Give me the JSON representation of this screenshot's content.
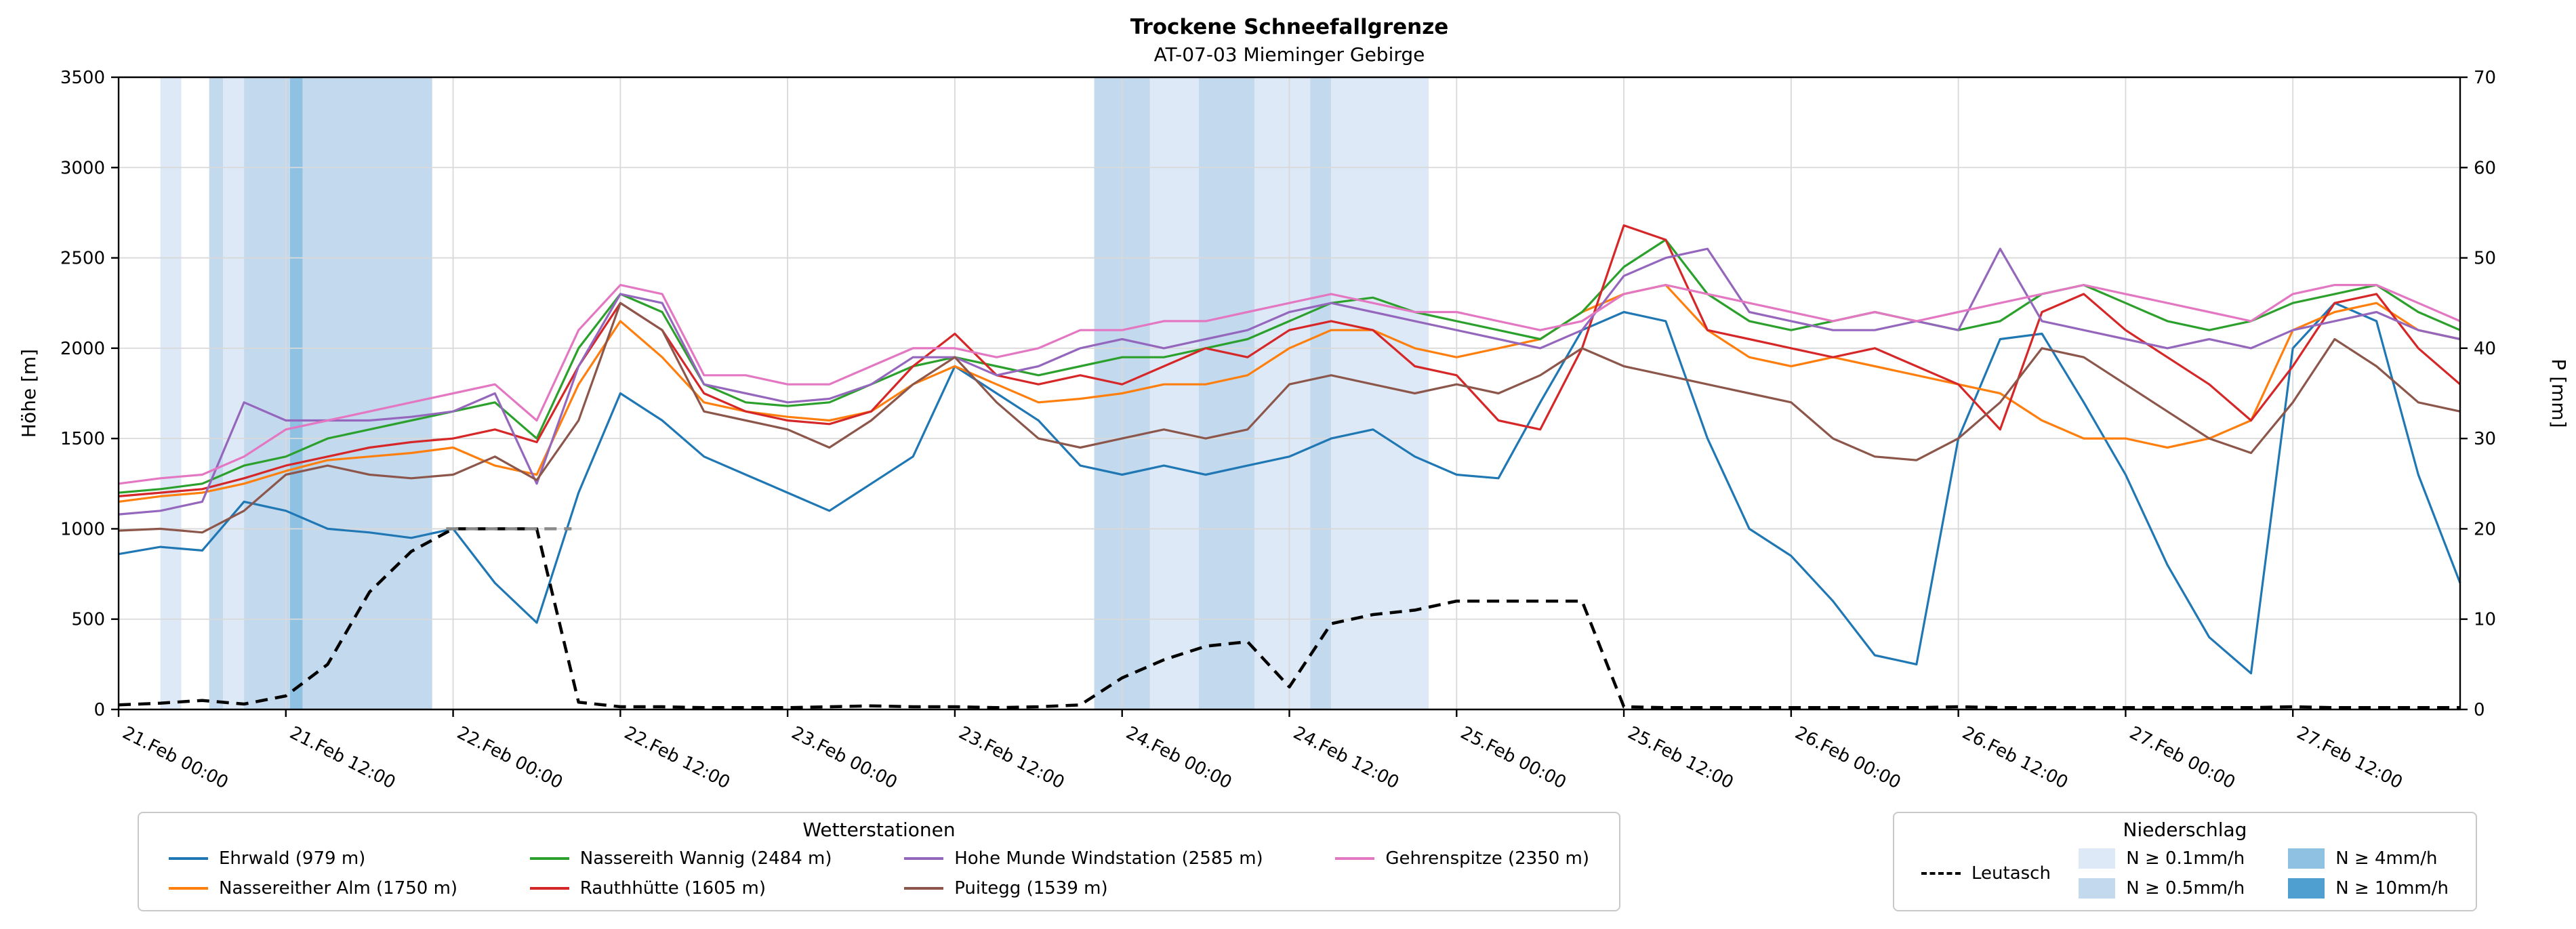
{
  "chart": {
    "title": "Trockene Schneefallgrenze",
    "subtitle": "AT-07-03 Mieminger Gebirge"
  },
  "chart_data": {
    "type": "line",
    "title": "Trockene Schneefallgrenze",
    "subtitle": "AT-07-03 Mieminger Gebirge",
    "ylabel_left": "Höhe [m]",
    "ylabel_right": "P [mm]",
    "ylim_left": [
      0,
      3500
    ],
    "ylim_right": [
      0,
      70
    ],
    "yticks_left": [
      0,
      500,
      1000,
      1500,
      2000,
      2500,
      3000,
      3500
    ],
    "yticks_right": [
      0,
      10,
      20,
      30,
      40,
      50,
      60,
      70
    ],
    "grid": true,
    "step_hours": 3,
    "total_hours": 168,
    "x_tick_interval_hours": 12,
    "x_tick_labels": [
      "21.Feb 00:00",
      "21.Feb 12:00",
      "22.Feb 00:00",
      "22.Feb 12:00",
      "23.Feb 00:00",
      "23.Feb 12:00",
      "24.Feb 00:00",
      "24.Feb 12:00",
      "25.Feb 00:00",
      "25.Feb 12:00",
      "26.Feb 00:00",
      "26.Feb 12:00",
      "27.Feb 00:00",
      "27.Feb 12:00"
    ],
    "series": [
      {
        "id": "ehrwald",
        "name": "Ehrwald (979 m)",
        "color": "#1f77b4",
        "axis": "left",
        "values": [
          860,
          900,
          880,
          1150,
          1100,
          1000,
          980,
          950,
          1000,
          700,
          480,
          1200,
          1750,
          1600,
          1400,
          1300,
          1200,
          1100,
          1250,
          1400,
          1900,
          1750,
          1600,
          1350,
          1300,
          1350,
          1300,
          1350,
          1400,
          1500,
          1550,
          1400,
          1300,
          1280,
          1700,
          2100,
          2200,
          2150,
          1500,
          1000,
          850,
          600,
          300,
          250,
          1500,
          2050,
          2080,
          1700,
          1300,
          800,
          400,
          200,
          2000,
          2250,
          2150,
          1300,
          700
        ]
      },
      {
        "id": "nassereither-alm",
        "name": "Nassereither Alm (1750 m)",
        "color": "#ff7f0e",
        "axis": "left",
        "values": [
          1150,
          1180,
          1200,
          1250,
          1320,
          1380,
          1400,
          1420,
          1450,
          1350,
          1300,
          1800,
          2150,
          1950,
          1700,
          1650,
          1620,
          1600,
          1650,
          1800,
          1900,
          1800,
          1700,
          1720,
          1750,
          1800,
          1800,
          1850,
          2000,
          2100,
          2100,
          2000,
          1950,
          2000,
          2050,
          2200,
          2300,
          2350,
          2100,
          1950,
          1900,
          1950,
          1900,
          1850,
          1800,
          1750,
          1600,
          1500,
          1500,
          1450,
          1500,
          1600,
          2100,
          2200,
          2250,
          2100,
          2050
        ]
      },
      {
        "id": "nassereith-wannig",
        "name": "Nassereith Wannig (2484 m)",
        "color": "#2ca02c",
        "axis": "left",
        "values": [
          1200,
          1220,
          1250,
          1350,
          1400,
          1500,
          1550,
          1600,
          1650,
          1700,
          1500,
          2000,
          2300,
          2200,
          1800,
          1700,
          1680,
          1700,
          1800,
          1900,
          1950,
          1900,
          1850,
          1900,
          1950,
          1950,
          2000,
          2050,
          2150,
          2250,
          2280,
          2200,
          2150,
          2100,
          2050,
          2200,
          2450,
          2600,
          2300,
          2150,
          2100,
          2150,
          2200,
          2150,
          2100,
          2150,
          2300,
          2350,
          2250,
          2150,
          2100,
          2150,
          2250,
          2300,
          2350,
          2200,
          2100
        ]
      },
      {
        "id": "rauthhuette",
        "name": "Rauthhütte (1605 m)",
        "color": "#d62728",
        "axis": "left",
        "values": [
          1180,
          1200,
          1220,
          1280,
          1350,
          1400,
          1450,
          1480,
          1500,
          1550,
          1480,
          1900,
          2250,
          2100,
          1750,
          1650,
          1600,
          1580,
          1650,
          1900,
          2080,
          1850,
          1800,
          1850,
          1800,
          1900,
          2000,
          1950,
          2100,
          2150,
          2100,
          1900,
          1850,
          1600,
          1550,
          2000,
          2680,
          2600,
          2100,
          2050,
          2000,
          1950,
          2000,
          1900,
          1800,
          1550,
          2200,
          2300,
          2100,
          1950,
          1800,
          1600,
          1900,
          2250,
          2300,
          2000,
          1800
        ]
      },
      {
        "id": "hohe-munde",
        "name": "Hohe Munde Windstation (2585 m)",
        "color": "#9467bd",
        "axis": "left",
        "values": [
          1080,
          1100,
          1150,
          1700,
          1600,
          1600,
          1600,
          1620,
          1650,
          1750,
          1250,
          1900,
          2300,
          2250,
          1800,
          1750,
          1700,
          1720,
          1800,
          1950,
          1950,
          1850,
          1900,
          2000,
          2050,
          2000,
          2050,
          2100,
          2200,
          2250,
          2200,
          2150,
          2100,
          2050,
          2000,
          2100,
          2400,
          2500,
          2550,
          2200,
          2150,
          2100,
          2100,
          2150,
          2100,
          2550,
          2150,
          2100,
          2050,
          2000,
          2050,
          2000,
          2100,
          2150,
          2200,
          2100,
          2050
        ]
      },
      {
        "id": "puitegg",
        "name": "Puitegg (1539 m)",
        "color": "#8c564b",
        "axis": "left",
        "values": [
          990,
          1000,
          980,
          1100,
          1300,
          1350,
          1300,
          1280,
          1300,
          1400,
          1270,
          1600,
          2250,
          2100,
          1650,
          1600,
          1550,
          1450,
          1600,
          1800,
          1950,
          1700,
          1500,
          1450,
          1500,
          1550,
          1500,
          1550,
          1800,
          1850,
          1800,
          1750,
          1800,
          1750,
          1850,
          2000,
          1900,
          1850,
          1800,
          1750,
          1700,
          1500,
          1400,
          1380,
          1500,
          1700,
          2000,
          1950,
          1800,
          1650,
          1500,
          1420,
          1700,
          2050,
          1900,
          1700,
          1650
        ]
      },
      {
        "id": "gehrenspitze",
        "name": "Gehrenspitze (2350 m)",
        "color": "#e377c2",
        "axis": "left",
        "values": [
          1250,
          1280,
          1300,
          1400,
          1550,
          1600,
          1650,
          1700,
          1750,
          1800,
          1600,
          2100,
          2350,
          2300,
          1850,
          1850,
          1800,
          1800,
          1900,
          2000,
          2000,
          1950,
          2000,
          2100,
          2100,
          2150,
          2150,
          2200,
          2250,
          2300,
          2250,
          2200,
          2200,
          2150,
          2100,
          2150,
          2300,
          2350,
          2300,
          2250,
          2200,
          2150,
          2200,
          2150,
          2200,
          2250,
          2300,
          2350,
          2300,
          2250,
          2200,
          2150,
          2300,
          2350,
          2350,
          2250,
          2150
        ]
      },
      {
        "id": "leutasch",
        "name": "Leutasch",
        "color": "#000000",
        "axis": "right",
        "dashed": true,
        "values": [
          0.5,
          0.7,
          1.0,
          0.6,
          1.5,
          5,
          13,
          17.5,
          20,
          20,
          20,
          0.8,
          0.3,
          0.3,
          0.2,
          0.2,
          0.2,
          0.3,
          0.4,
          0.3,
          0.3,
          0.2,
          0.3,
          0.5,
          3.5,
          5.5,
          7,
          7.5,
          2.5,
          9.5,
          10.5,
          11,
          12,
          12,
          12,
          12,
          0.3,
          0.2,
          0.2,
          0.2,
          0.2,
          0.2,
          0.2,
          0.2,
          0.3,
          0.2,
          0.2,
          0.2,
          0.2,
          0.2,
          0.2,
          0.2,
          0.3,
          0.2,
          0.2,
          0.2,
          0.2
        ]
      }
    ],
    "capped_segment": {
      "series": "leutasch",
      "start": 23.5,
      "end": 32.5,
      "value": 20,
      "color": "#8a8a8a"
    },
    "precip_bands": [
      {
        "start": 3,
        "end": 4.5,
        "level": "0.1"
      },
      {
        "start": 6.5,
        "end": 7.5,
        "level": "0.5"
      },
      {
        "start": 7.5,
        "end": 9,
        "level": "0.1"
      },
      {
        "start": 9,
        "end": 12.3,
        "level": "0.5"
      },
      {
        "start": 12.3,
        "end": 13.2,
        "level": "4"
      },
      {
        "start": 13.2,
        "end": 22.5,
        "level": "0.5"
      },
      {
        "start": 70,
        "end": 74,
        "level": "0.5"
      },
      {
        "start": 74,
        "end": 77.5,
        "level": "0.1"
      },
      {
        "start": 77.5,
        "end": 81.5,
        "level": "0.5"
      },
      {
        "start": 81.5,
        "end": 85.5,
        "level": "0.1"
      },
      {
        "start": 85.5,
        "end": 87,
        "level": "0.5"
      },
      {
        "start": 87,
        "end": 94,
        "level": "0.1"
      }
    ],
    "band_colors": {
      "0.1": "#dde9f6",
      "0.5": "#c3d9ee",
      "4": "#8fc2e2",
      "10": "#4f9fd0"
    }
  },
  "legend_stations": {
    "title": "Wetterstationen"
  },
  "legend_precip": {
    "title": "Niederschlag",
    "leutasch_label": "Leutasch",
    "levels": [
      {
        "label": "N ≥ 0.1mm/h",
        "color": "#dde9f6"
      },
      {
        "label": "N ≥ 0.5mm/h",
        "color": "#c3d9ee"
      },
      {
        "label": "N ≥ 4mm/h",
        "color": "#8fc2e2"
      },
      {
        "label": "N ≥ 10mm/h",
        "color": "#4f9fd0"
      }
    ]
  }
}
